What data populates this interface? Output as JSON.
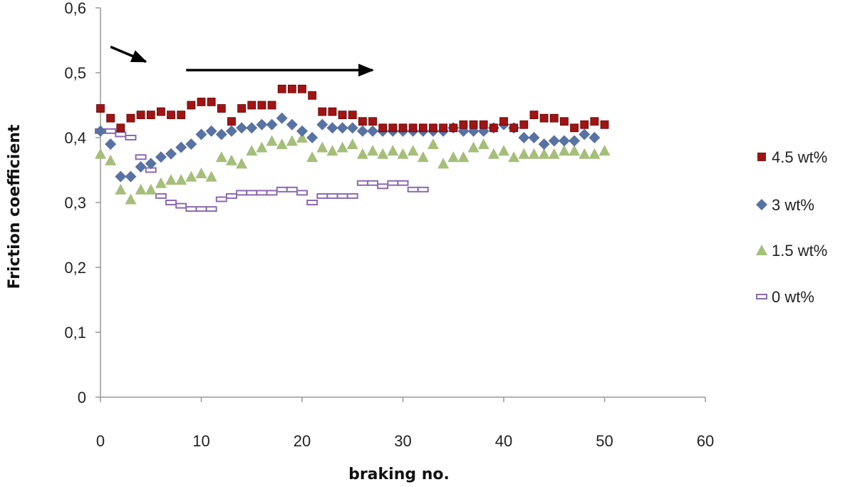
{
  "chart_data": {
    "type": "scatter",
    "title": "",
    "xlabel": "braking no.",
    "ylabel": "Friction coefficient",
    "xlim": [
      0,
      60
    ],
    "ylim": [
      0,
      0.6
    ],
    "x_ticks": [
      0,
      10,
      20,
      30,
      40,
      50,
      60
    ],
    "y_ticks": [
      0,
      0.1,
      0.2,
      0.3,
      0.4,
      0.5,
      0.6
    ],
    "x_tick_labels": [
      "0",
      "10",
      "20",
      "30",
      "40",
      "50",
      "60"
    ],
    "y_tick_labels": [
      "0",
      "0,1",
      "0,2",
      "0,3",
      "0,4",
      "0,5",
      "0,6"
    ],
    "grid": false,
    "legend_position": "right",
    "annotations": [
      {
        "type": "arrow",
        "from": [
          1,
          0.54
        ],
        "to": [
          4.5,
          0.517
        ]
      },
      {
        "type": "arrow",
        "from": [
          8.5,
          0.504
        ],
        "to": [
          27,
          0.504
        ]
      }
    ],
    "series": [
      {
        "name": "4.5 wt%",
        "marker": "square",
        "color": "#a01414",
        "x": [
          0,
          1,
          2,
          3,
          4,
          5,
          6,
          7,
          8,
          9,
          10,
          11,
          12,
          13,
          14,
          15,
          16,
          17,
          18,
          19,
          20,
          21,
          22,
          23,
          24,
          25,
          26,
          27,
          28,
          29,
          30,
          31,
          32,
          33,
          34,
          35,
          36,
          37,
          38,
          39,
          40,
          41,
          42,
          43,
          44,
          45,
          46,
          47,
          48,
          49,
          50
        ],
        "y": [
          0.445,
          0.43,
          0.415,
          0.43,
          0.435,
          0.435,
          0.44,
          0.435,
          0.435,
          0.45,
          0.455,
          0.455,
          0.445,
          0.425,
          0.445,
          0.45,
          0.45,
          0.45,
          0.475,
          0.475,
          0.475,
          0.465,
          0.44,
          0.44,
          0.435,
          0.435,
          0.425,
          0.425,
          0.415,
          0.415,
          0.415,
          0.415,
          0.415,
          0.415,
          0.415,
          0.415,
          0.42,
          0.42,
          0.42,
          0.415,
          0.425,
          0.415,
          0.42,
          0.435,
          0.43,
          0.43,
          0.425,
          0.415,
          0.42,
          0.425,
          0.42
        ]
      },
      {
        "name": "3 wt%",
        "marker": "diamond",
        "color": "#5872a4",
        "x": [
          0,
          1,
          2,
          3,
          4,
          5,
          6,
          7,
          8,
          9,
          10,
          11,
          12,
          13,
          14,
          15,
          16,
          17,
          18,
          19,
          20,
          21,
          22,
          23,
          24,
          25,
          26,
          27,
          28,
          29,
          30,
          31,
          32,
          33,
          34,
          35,
          36,
          37,
          38,
          39,
          40,
          41,
          42,
          43,
          44,
          45,
          46,
          47,
          48,
          49
        ],
        "y": [
          0.41,
          0.39,
          0.34,
          0.34,
          0.355,
          0.36,
          0.37,
          0.375,
          0.385,
          0.39,
          0.405,
          0.41,
          0.405,
          0.41,
          0.415,
          0.415,
          0.42,
          0.42,
          0.43,
          0.42,
          0.41,
          0.4,
          0.42,
          0.415,
          0.415,
          0.415,
          0.41,
          0.41,
          0.41,
          0.41,
          0.41,
          0.41,
          0.41,
          0.41,
          0.41,
          0.415,
          0.41,
          0.41,
          0.41,
          0.415,
          0.42,
          0.415,
          0.4,
          0.4,
          0.39,
          0.395,
          0.395,
          0.395,
          0.405,
          0.4
        ]
      },
      {
        "name": "1.5 wt%",
        "marker": "triangle",
        "color": "#a5bf7a",
        "x": [
          0,
          1,
          2,
          3,
          4,
          5,
          6,
          7,
          8,
          9,
          10,
          11,
          12,
          13,
          14,
          15,
          16,
          17,
          18,
          19,
          20,
          21,
          22,
          23,
          24,
          25,
          26,
          27,
          28,
          29,
          30,
          31,
          32,
          33,
          34,
          35,
          36,
          37,
          38,
          39,
          40,
          41,
          42,
          43,
          44,
          45,
          46,
          47,
          48,
          49,
          50
        ],
        "y": [
          0.375,
          0.365,
          0.32,
          0.305,
          0.32,
          0.32,
          0.33,
          0.335,
          0.335,
          0.34,
          0.345,
          0.34,
          0.37,
          0.365,
          0.36,
          0.38,
          0.385,
          0.395,
          0.39,
          0.395,
          0.4,
          0.37,
          0.385,
          0.38,
          0.385,
          0.39,
          0.375,
          0.38,
          0.375,
          0.38,
          0.375,
          0.38,
          0.37,
          0.39,
          0.36,
          0.37,
          0.37,
          0.385,
          0.39,
          0.375,
          0.38,
          0.37,
          0.375,
          0.375,
          0.375,
          0.375,
          0.38,
          0.38,
          0.375,
          0.375,
          0.38
        ]
      },
      {
        "name": "0 wt%",
        "marker": "hollow-rect",
        "color": "#8a6bb0",
        "x": [
          0,
          1,
          2,
          3,
          4,
          5,
          6,
          7,
          8,
          9,
          10,
          11,
          12,
          13,
          14,
          15,
          16,
          17,
          18,
          19,
          20,
          21,
          22,
          23,
          24,
          25,
          26,
          27,
          28,
          29,
          30,
          31,
          32
        ],
        "y": [
          0.41,
          0.41,
          0.405,
          0.4,
          0.37,
          0.35,
          0.31,
          0.3,
          0.295,
          0.29,
          0.29,
          0.29,
          0.305,
          0.31,
          0.315,
          0.315,
          0.315,
          0.315,
          0.32,
          0.32,
          0.315,
          0.3,
          0.31,
          0.31,
          0.31,
          0.31,
          0.33,
          0.33,
          0.325,
          0.33,
          0.33,
          0.32,
          0.32
        ]
      }
    ]
  }
}
